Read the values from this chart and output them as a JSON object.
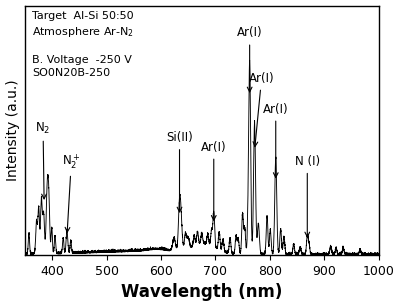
{
  "xmin": 350,
  "xmax": 1000,
  "ymin": 0,
  "ymax": 1.0,
  "xlabel": "Wavelength (nm)",
  "ylabel": "Intensity (a.u.)",
  "xlabel_fontsize": 12,
  "ylabel_fontsize": 10,
  "annotation_fontsize": 8.5,
  "background_color": "#ffffff",
  "line_color": "#000000",
  "xticks": [
    400,
    500,
    600,
    700,
    800,
    900,
    1000
  ]
}
